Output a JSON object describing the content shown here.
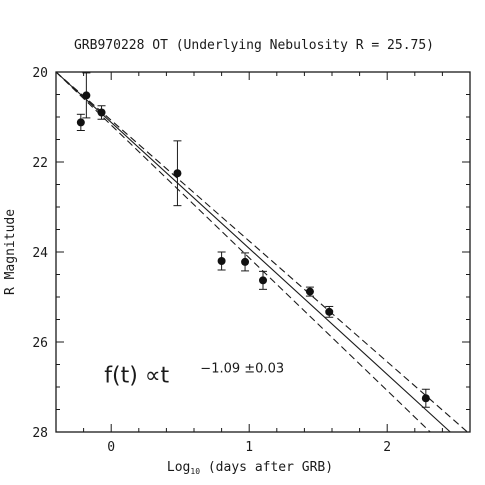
{
  "chart_data": {
    "type": "scatter",
    "title": "GRB970228 OT (Underlying Nebulosity R = 25.75)",
    "xlabel": {
      "prefix": "Log",
      "subscript": "10",
      "suffix": " (days after GRB)"
    },
    "ylabel": "R Magnitude",
    "xlim": [
      -0.4,
      2.6
    ],
    "ylim": [
      20,
      28
    ],
    "y_inverted": true,
    "x_ticks": [
      0,
      1,
      2
    ],
    "y_ticks": [
      20,
      22,
      24,
      26,
      28
    ],
    "grid": false,
    "points": [
      {
        "x": -0.22,
        "y": 21.12,
        "err": 0.18
      },
      {
        "x": -0.18,
        "y": 20.52,
        "err": 0.5
      },
      {
        "x": -0.07,
        "y": 20.9,
        "err": 0.15
      },
      {
        "x": 0.48,
        "y": 22.25,
        "err": 0.72
      },
      {
        "x": 0.8,
        "y": 24.2,
        "err": 0.2
      },
      {
        "x": 0.97,
        "y": 24.22,
        "err": 0.2
      },
      {
        "x": 1.1,
        "y": 24.63,
        "err": 0.2
      },
      {
        "x": 1.44,
        "y": 24.88,
        "err": 0.1
      },
      {
        "x": 1.58,
        "y": 25.33,
        "err": 0.12
      },
      {
        "x": 2.28,
        "y": 27.25,
        "err": 0.2
      }
    ],
    "fit_lines": [
      {
        "name": "best fit",
        "style": "solid",
        "x": [
          -0.4,
          2.6
        ],
        "y": [
          20.0,
          28.4
        ]
      },
      {
        "name": "upper bound",
        "style": "dashed",
        "x": [
          -0.4,
          2.6
        ],
        "y": [
          20.0,
          28.85
        ]
      },
      {
        "name": "lower bound",
        "style": "dashed",
        "x": [
          -0.4,
          2.6
        ],
        "y": [
          20.0,
          28.05
        ]
      }
    ],
    "annotation": {
      "main": "f(t)  ∝t",
      "exponent": "−1.09 ±0.03",
      "x": -0.05,
      "y": 26.9
    }
  }
}
